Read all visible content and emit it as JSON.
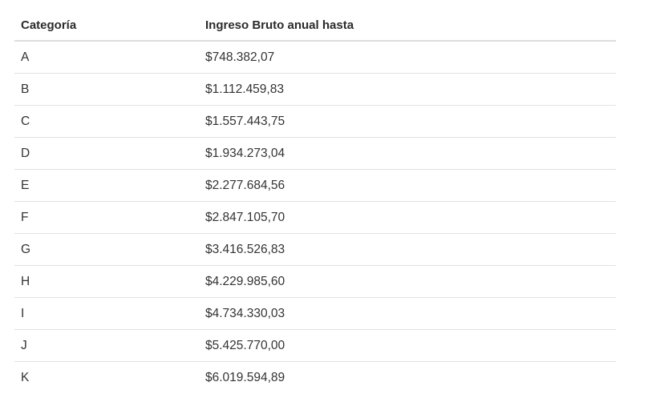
{
  "table": {
    "headers": {
      "category": "Categoría",
      "income": "Ingreso Bruto anual hasta"
    },
    "rows": [
      {
        "category": "A",
        "income": "$748.382,07"
      },
      {
        "category": "B",
        "income": "$1.112.459,83"
      },
      {
        "category": "C",
        "income": "$1.557.443,75"
      },
      {
        "category": "D",
        "income": "$1.934.273,04"
      },
      {
        "category": "E",
        "income": "$2.277.684,56"
      },
      {
        "category": "F",
        "income": "$2.847.105,70"
      },
      {
        "category": "G",
        "income": "$3.416.526,83"
      },
      {
        "category": "H",
        "income": "$4.229.985,60"
      },
      {
        "category": "I",
        "income": "$4.734.330,03"
      },
      {
        "category": "J",
        "income": "$5.425.770,00"
      },
      {
        "category": "K",
        "income": "$6.019.594,89"
      }
    ]
  }
}
